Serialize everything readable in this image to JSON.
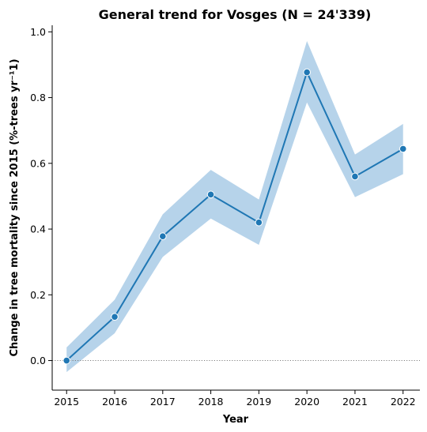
{
  "chart_data": {
    "type": "line",
    "title": "General trend for Vosges  (N = 24'339)",
    "xlabel": "Year",
    "ylabel": "Change in tree mortality since 2015 (%-trees yr⁻¹1)",
    "x": [
      2015,
      2016,
      2017,
      2018,
      2019,
      2020,
      2021,
      2022
    ],
    "x_tick_labels": [
      "2015",
      "2016",
      "2017",
      "2018",
      "2019",
      "2020",
      "2021",
      "2022"
    ],
    "y_ticks": [
      0.0,
      0.2,
      0.4,
      0.6,
      0.8,
      1.0
    ],
    "y_tick_labels": [
      "0.0",
      "0.2",
      "0.4",
      "0.6",
      "0.8",
      "1.0"
    ],
    "ylim": [
      -0.09,
      1.02
    ],
    "xlim": [
      2014.7,
      2022.35
    ],
    "series": [
      {
        "values": [
          0.0,
          0.133,
          0.378,
          0.505,
          0.42,
          0.877,
          0.56,
          0.644
        ],
        "ci_lower": [
          -0.035,
          0.083,
          0.315,
          0.432,
          0.352,
          0.785,
          0.497,
          0.567
        ],
        "ci_upper": [
          0.04,
          0.185,
          0.445,
          0.58,
          0.49,
          0.972,
          0.627,
          0.72
        ],
        "color": "#1f77b4",
        "band_color": "#b6d3ea"
      }
    ],
    "reference_line": {
      "y": 0.0,
      "style": "dotted",
      "color": "#808080"
    },
    "grid": false
  }
}
